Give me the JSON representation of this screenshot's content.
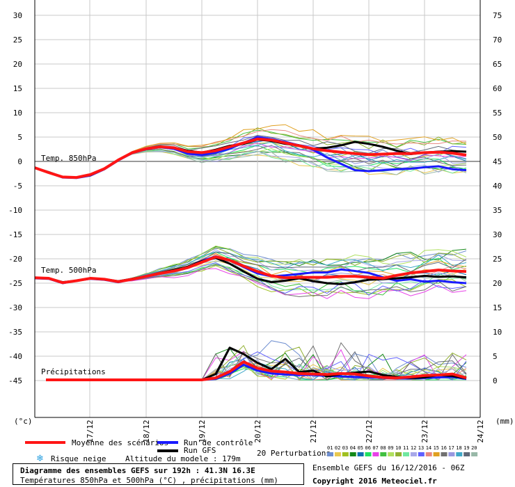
{
  "chart_data": {
    "type": "line",
    "title": "Diagramme des ensembles GEFS sur 192h : 41.3N 16.3E",
    "subtitle": "Températures 850hPa et 500hPa (°C) , précipitations (mm)",
    "x_ticks": [
      "17/12",
      "18/12",
      "19/12",
      "20/12",
      "21/12",
      "22/12",
      "23/12",
      "24/12"
    ],
    "left_axis": {
      "unit": "(°c)",
      "ticks": [
        30,
        25,
        20,
        15,
        10,
        5,
        0,
        -5,
        -10,
        -15,
        -20,
        -25,
        -30,
        -35,
        -40,
        -45
      ],
      "range": [
        -52,
        33
      ]
    },
    "right_axis": {
      "unit": "(mm)",
      "ticks": [
        75,
        70,
        65,
        60,
        55,
        50,
        45,
        40,
        35,
        30,
        25,
        20,
        15,
        10,
        5,
        0
      ]
    },
    "section_labels": {
      "t850": "Temp. 850hPa",
      "t500": "Temp. 500hPa",
      "precip": "Précipitations"
    },
    "t850": {
      "x": [
        0,
        0.25,
        0.5,
        0.75,
        1,
        1.25,
        1.5,
        1.75,
        2,
        2.25,
        2.5,
        2.75,
        3,
        3.25,
        3.5,
        3.75,
        4,
        4.25,
        4.5,
        4.75,
        5,
        5.25,
        5.5,
        5.75,
        6,
        6.25,
        6.5,
        6.75,
        7,
        7.25,
        7.5,
        7.75
      ],
      "mean": [
        -1.3,
        -2.3,
        -3.2,
        -3.3,
        -2.7,
        -1.5,
        0.3,
        1.8,
        2.6,
        3.0,
        2.8,
        2.0,
        1.8,
        2.2,
        3.0,
        3.8,
        4.6,
        4.4,
        3.8,
        3.2,
        2.6,
        2.2,
        1.9,
        1.6,
        1.4,
        1.5,
        1.6,
        1.6,
        1.8,
        1.9,
        1.7,
        1.3
      ],
      "control": [
        -1.3,
        -2.3,
        -3.3,
        -3.4,
        -2.9,
        -1.6,
        0.2,
        1.7,
        2.5,
        2.9,
        2.6,
        1.6,
        1.3,
        1.8,
        2.6,
        3.8,
        5.0,
        4.5,
        4.0,
        3.3,
        2.4,
        0.8,
        -0.5,
        -1.8,
        -2.0,
        -1.8,
        -1.6,
        -1.5,
        -1.2,
        -1.0,
        -1.6,
        -1.8
      ],
      "gfs": [
        -1.3,
        -2.2,
        -3.2,
        -3.3,
        -2.8,
        -1.5,
        0.3,
        1.8,
        2.6,
        3.0,
        2.8,
        2.2,
        1.8,
        2.4,
        3.2,
        3.6,
        4.5,
        4.2,
        3.6,
        3.3,
        2.6,
        2.8,
        3.3,
        4.0,
        3.6,
        3.0,
        2.2,
        1.5,
        1.8,
        2.0,
        2.1,
        2.0
      ]
    },
    "t500": {
      "mean": [
        -23.9,
        -24.0,
        -24.9,
        -24.5,
        -24.0,
        -24.2,
        -24.7,
        -24.2,
        -23.6,
        -23.0,
        -22.5,
        -21.8,
        -20.7,
        -19.6,
        -20.3,
        -21.5,
        -22.6,
        -23.5,
        -23.9,
        -23.8,
        -23.8,
        -23.8,
        -23.6,
        -23.6,
        -23.8,
        -24.0,
        -23.4,
        -22.9,
        -22.6,
        -22.3,
        -22.5,
        -22.6
      ],
      "control": [
        -24.0,
        -24.1,
        -25.0,
        -24.5,
        -24.1,
        -24.3,
        -24.8,
        -24.2,
        -23.5,
        -23.0,
        -22.4,
        -21.7,
        -20.4,
        -19.5,
        -20.3,
        -21.7,
        -23.0,
        -23.6,
        -23.4,
        -23.1,
        -22.8,
        -22.8,
        -22.2,
        -22.5,
        -22.9,
        -23.8,
        -24.5,
        -24.2,
        -24.7,
        -24.5,
        -24.8,
        -25.0
      ],
      "gfs": [
        -23.9,
        -24.0,
        -24.8,
        -24.5,
        -24.0,
        -24.2,
        -24.6,
        -24.1,
        -23.6,
        -22.9,
        -22.3,
        -21.6,
        -20.5,
        -19.8,
        -21.0,
        -22.6,
        -24.1,
        -24.8,
        -24.5,
        -24.0,
        -24.6,
        -25.0,
        -25.2,
        -24.8,
        -24.3,
        -24.2,
        -24.0,
        -23.8,
        -23.5,
        -23.7,
        -23.6,
        -23.8
      ]
    },
    "precip": {
      "unit": "mm",
      "x": [
        0.2,
        1,
        2,
        2.5,
        2.9,
        3.0,
        3.25,
        3.5,
        3.75,
        4,
        4.25,
        4.5,
        4.75,
        5,
        5.25,
        5.5,
        5.75,
        6,
        6.25,
        6.5,
        6.75,
        7,
        7.25,
        7.5,
        7.75
      ],
      "mean": [
        0,
        0,
        0,
        0,
        0,
        0,
        0.4,
        1.7,
        3.7,
        2.4,
        1.8,
        1.6,
        1.3,
        1.2,
        1.1,
        1.3,
        1.2,
        0.8,
        0.5,
        0.4,
        0.6,
        0.9,
        1.0,
        1.2,
        0.4
      ],
      "control": [
        0,
        0,
        0,
        0,
        0,
        0,
        0.2,
        1.3,
        3.1,
        1.9,
        1.3,
        1.1,
        1.0,
        1.0,
        0.8,
        0.7,
        0.6,
        0.5,
        0.4,
        0.3,
        0.3,
        0.4,
        0.5,
        0.6,
        0.2
      ],
      "gfs": [
        0,
        0,
        0,
        0,
        0,
        0,
        1.2,
        6.6,
        5.3,
        3.5,
        2.2,
        4.3,
        1.6,
        1.9,
        0.7,
        1.2,
        1.5,
        1.7,
        1.0,
        0.6,
        0.4,
        0.5,
        1.0,
        0.8,
        0.3
      ]
    },
    "perturbation_colors": [
      "#6f8fd0",
      "#e8c850",
      "#a0c020",
      "#148818",
      "#1070b0",
      "#20e060",
      "#e840e8",
      "#40c040",
      "#b0e060",
      "#90b030",
      "#70e8a0",
      "#a8a8e8",
      "#6060ff",
      "#e88880",
      "#e0a020",
      "#707070",
      "#9898e0",
      "#40a8c8",
      "#606878",
      "#98b8a8"
    ],
    "mean_color": "#ff1515",
    "control_color": "#1a1aff",
    "gfs_color": "#000000",
    "grid": true
  },
  "legend": {
    "mean": "Moyenne des scénarios",
    "control": "Run de contrôle",
    "gfs": "Run GFS",
    "snow": "Risque neige",
    "altitude": "Altitude du modele : 179m",
    "perturbations_label": "20 Perturbations",
    "perturbation_numbers": [
      "01",
      "02",
      "03",
      "04",
      "05",
      "06",
      "07",
      "08",
      "09",
      "10",
      "11",
      "12",
      "13",
      "14",
      "15",
      "16",
      "17",
      "18",
      "19",
      "20"
    ]
  },
  "footer": {
    "ensemble_run": "Ensemble GEFS du 16/12/2016 - 06Z",
    "copyright": "Copyright 2016 Meteociel.fr"
  }
}
